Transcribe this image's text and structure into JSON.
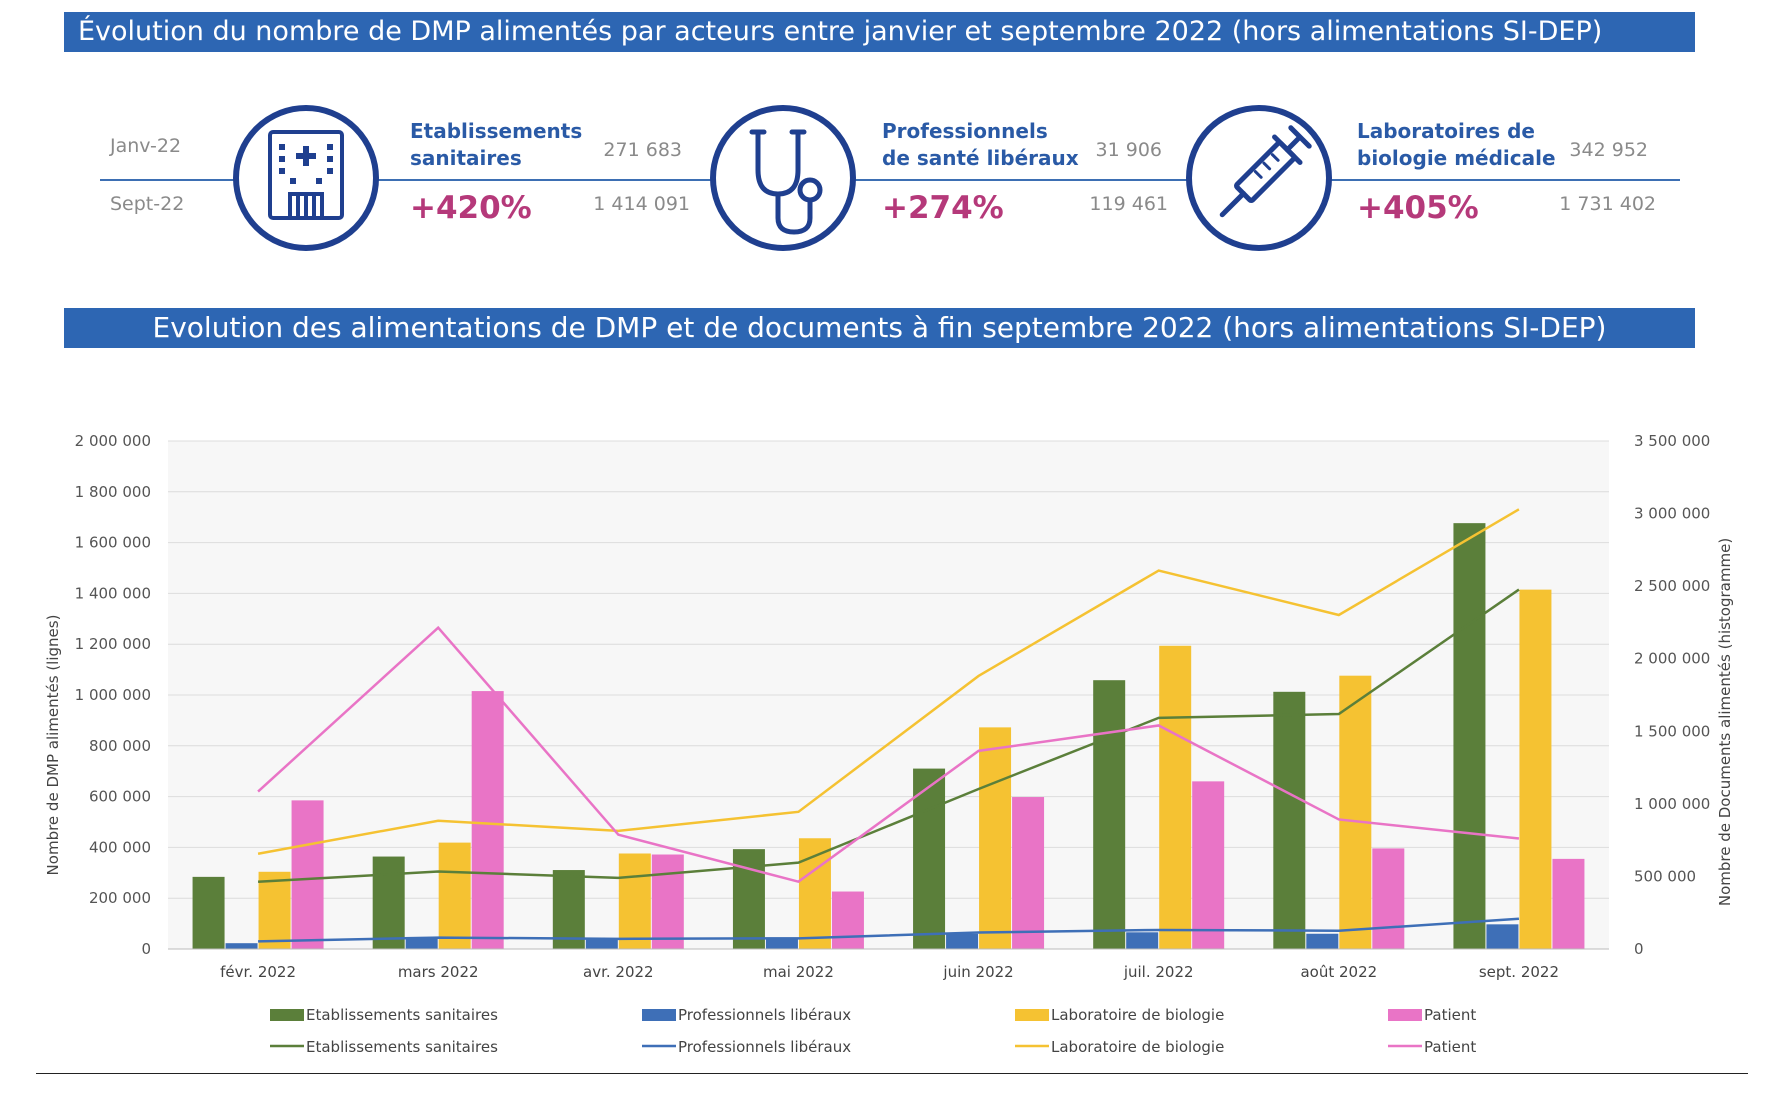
{
  "title": "Évolution du nombre de DMP alimentés par acteurs entre janvier et septembre 2022 (hors alimentations SI-DEP)",
  "subtitle": "Evolution des alimentations de DMP et de documents à fin septembre 2022 (hors alimentations SI-DEP)",
  "kpis": {
    "row_labels": [
      "Janv-22",
      "Sept-22"
    ],
    "items": [
      {
        "name_line1": "Etablissements",
        "name_line2": "sanitaires",
        "change": "+420%",
        "jan": "271 683",
        "sep": "1 414 091",
        "icon": "hospital-icon"
      },
      {
        "name_line1": "Professionnels",
        "name_line2": "de santé libéraux",
        "change": "+274%",
        "jan": "31 906",
        "sep": "119 461",
        "icon": "stethoscope-icon"
      },
      {
        "name_line1": "Laboratoires de",
        "name_line2": "biologie médicale",
        "change": "+405%",
        "jan": "342 952",
        "sep": "1 731 402",
        "icon": "syringe-icon"
      }
    ],
    "accent_color": "#1f3f8f",
    "change_color": "#b5397a"
  },
  "chart_data": {
    "type": "bar",
    "categories": [
      "févr. 2022",
      "mars 2022",
      "avr. 2022",
      "mai 2022",
      "juin 2022",
      "juil. 2022",
      "août 2022",
      "sept. 2022"
    ],
    "ylabel": "Nombre de DMP alimentés (lignes)",
    "y2label": "Nombre de Documents alimentés (histogramme)",
    "ylim": [
      0,
      2000000
    ],
    "y2lim": [
      0,
      3500000
    ],
    "yticks": [
      "2 000 000",
      "1 800 000",
      "1 600 000",
      "1 400 000",
      "1 200 000",
      "1 000 000",
      "800 000",
      "600 000",
      "400 000",
      "200 000",
      "0"
    ],
    "y2ticks": [
      "3 500 000",
      "3 000 000",
      "2 500 000",
      "2 000 000",
      "1 500 000",
      "1 000 000",
      "500 000",
      "0"
    ],
    "grid": true,
    "legend_placement": "bottom",
    "bar_series": [
      {
        "name": "Etablissements sanitaires",
        "color": "#5b7f3a",
        "values": [
          497000,
          637000,
          544000,
          688000,
          1243000,
          1852000,
          1772000,
          2934000
        ]
      },
      {
        "name": "Professionnels libéraux",
        "color": "#3e6fb7",
        "values": [
          40000,
          83000,
          65000,
          80000,
          105000,
          115000,
          105000,
          170000
        ]
      },
      {
        "name": "Laboratoire de biologie",
        "color": "#f5c232",
        "values": [
          532000,
          733000,
          658000,
          763000,
          1527000,
          2089000,
          1883000,
          2476000
        ]
      },
      {
        "name": "Patient",
        "color": "#e974c6",
        "values": [
          1024000,
          1777000,
          651000,
          396000,
          1047000,
          1155000,
          693000,
          621000
        ]
      }
    ],
    "line_series": [
      {
        "name": "Etablissements sanitaires",
        "color": "#5b7f3a",
        "values": [
          265000,
          305000,
          280000,
          340000,
          630000,
          910000,
          925000,
          1415000
        ]
      },
      {
        "name": "Professionnels libéraux",
        "color": "#3e6fb7",
        "values": [
          30000,
          45000,
          40000,
          42000,
          65000,
          75000,
          72000,
          119000
        ]
      },
      {
        "name": "Laboratoire de biologie",
        "color": "#f5c232",
        "values": [
          375000,
          505000,
          465000,
          540000,
          1075000,
          1490000,
          1315000,
          1731000
        ]
      },
      {
        "name": "Patient",
        "color": "#e974c6",
        "values": [
          620000,
          1265000,
          450000,
          265000,
          780000,
          880000,
          510000,
          435000
        ]
      }
    ]
  }
}
